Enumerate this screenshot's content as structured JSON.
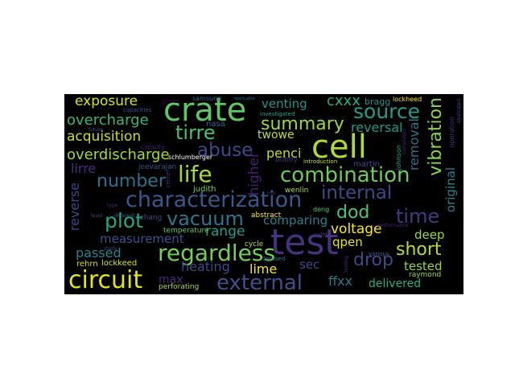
{
  "words": [
    {
      "text": "test",
      "color": "#46327e"
    },
    {
      "text": "cell",
      "color": "#addc30"
    },
    {
      "text": "crate",
      "color": "#5ec962"
    },
    {
      "text": "characterization",
      "color": "#38598c"
    },
    {
      "text": "combination",
      "color": "#6ccd5a"
    },
    {
      "text": "regardless",
      "color": "#73d056"
    },
    {
      "text": "external",
      "color": "#3b528b"
    },
    {
      "text": "summary",
      "color": "#9bd93c"
    },
    {
      "text": "circuit",
      "color": "#e5e419"
    },
    {
      "text": "source",
      "color": "#1f9e89"
    },
    {
      "text": "vibration",
      "color": "#84d44b"
    },
    {
      "text": "abuse",
      "color": "#3e4a89"
    },
    {
      "text": "number",
      "color": "#2c728e"
    },
    {
      "text": "life",
      "color": "#a5db36"
    },
    {
      "text": "internal",
      "color": "#3e4989"
    },
    {
      "text": "vacuum",
      "color": "#2b758e"
    },
    {
      "text": "plot",
      "color": "#22a884"
    },
    {
      "text": "time",
      "color": "#443983"
    },
    {
      "text": "short",
      "color": "#b5de2b"
    },
    {
      "text": "drop",
      "color": "#3e4989"
    },
    {
      "text": "dod",
      "color": "#50c46a"
    },
    {
      "text": "tirre",
      "color": "#4ac16d"
    },
    {
      "text": "overcharge",
      "color": "#35b779"
    },
    {
      "text": "overdischarge",
      "color": "#a2da37"
    },
    {
      "text": "acquisition",
      "color": "#c8e020"
    },
    {
      "text": "exposure",
      "color": "#d8e219"
    },
    {
      "text": "venting",
      "color": "#1f968b"
    },
    {
      "text": "cxxx",
      "color": "#27ad81"
    },
    {
      "text": "reversal",
      "color": "#1e9b8a"
    },
    {
      "text": "removal",
      "color": "#2c728e"
    },
    {
      "text": "original",
      "color": "#26828e"
    },
    {
      "text": "penci",
      "color": "#bddf26"
    },
    {
      "text": "twowe",
      "color": "#c0df25"
    },
    {
      "text": "higher",
      "color": "#481f70"
    },
    {
      "text": "lirre",
      "color": "#472f7d"
    },
    {
      "text": "reverse",
      "color": "#3f4788"
    },
    {
      "text": "range",
      "color": "#1f9e89"
    },
    {
      "text": "comparing",
      "color": "#26828e"
    },
    {
      "text": "voltage",
      "color": "#fde725"
    },
    {
      "text": "deep",
      "color": "#9bd93c"
    },
    {
      "text": "qpen",
      "color": "#e5e419"
    },
    {
      "text": "measurement",
      "color": "#3b528b"
    },
    {
      "text": "passed",
      "color": "#25858e"
    },
    {
      "text": "heating",
      "color": "#3e4989"
    },
    {
      "text": "lime",
      "color": "#fde725"
    },
    {
      "text": "sec",
      "color": "#3f4788"
    },
    {
      "text": "tested",
      "color": "#8fd744"
    },
    {
      "text": "max",
      "color": "#482878"
    },
    {
      "text": "ffxx",
      "color": "#2a788e"
    },
    {
      "text": "delivered",
      "color": "#29af7f"
    },
    {
      "text": "bragg",
      "color": "#20928c"
    },
    {
      "text": "lockheed",
      "color": "#fde725"
    },
    {
      "text": "samsung",
      "color": "#31688e"
    },
    {
      "text": "order",
      "color": "#440154"
    },
    {
      "text": "capacities",
      "color": "#3b528b"
    },
    {
      "text": "future",
      "color": "#3b528b"
    },
    {
      "text": "nasa",
      "color": "#31688e"
    },
    {
      "text": "investigated",
      "color": "#20a486"
    },
    {
      "text": "capacity",
      "color": "#482475"
    },
    {
      "text": "schlumberger",
      "color": "#ffffff"
    },
    {
      "text": "jeevarajan",
      "color": "#3b528b"
    },
    {
      "text": "martin",
      "color": "#3f4788"
    },
    {
      "text": "judith",
      "color": "#7ad151"
    },
    {
      "text": "wenlin",
      "color": "#addc30"
    },
    {
      "text": "zhang",
      "color": "#3e4989"
    },
    {
      "text": "abstract",
      "color": "#fde725"
    },
    {
      "text": "deng",
      "color": "#5ec962"
    },
    {
      "text": "temperature",
      "color": "#5ec962"
    },
    {
      "text": "level",
      "color": "#3f4788"
    },
    {
      "text": "different",
      "color": "#31688e"
    },
    {
      "text": "performance",
      "color": "#482475"
    },
    {
      "text": "cycle",
      "color": "#b5de2b"
    },
    {
      "text": "study",
      "color": "#3e4a89"
    },
    {
      "text": "rehrn",
      "color": "#d2e21b"
    },
    {
      "text": "lockkeed",
      "color": "#d8e219"
    },
    {
      "text": "perforating",
      "color": "#a5db36"
    },
    {
      "text": "raymond",
      "color": "#a0da39"
    },
    {
      "text": "johnson",
      "color": "#22a884"
    },
    {
      "text": "focused",
      "color": "#2d708e"
    },
    {
      "text": "bobby",
      "color": "#472d7b"
    },
    {
      "text": "introduction",
      "color": "#c8e020"
    },
    {
      "text": "safety",
      "color": "#46327e"
    },
    {
      "text": "various",
      "color": "#31688e"
    },
    {
      "text": "testing",
      "color": "#472f7d"
    },
    {
      "text": "center",
      "color": "#46337f"
    },
    {
      "text": "type",
      "color": "#482878"
    },
    {
      "text": "completed",
      "color": "#482475"
    },
    {
      "text": "operation",
      "color": "#46327e"
    },
    {
      "text": "evaluated",
      "color": "#3e4989"
    },
    {
      "text": "applicable",
      "color": "#31688e"
    },
    {
      "text": "final",
      "color": "#472d7b"
    }
  ]
}
